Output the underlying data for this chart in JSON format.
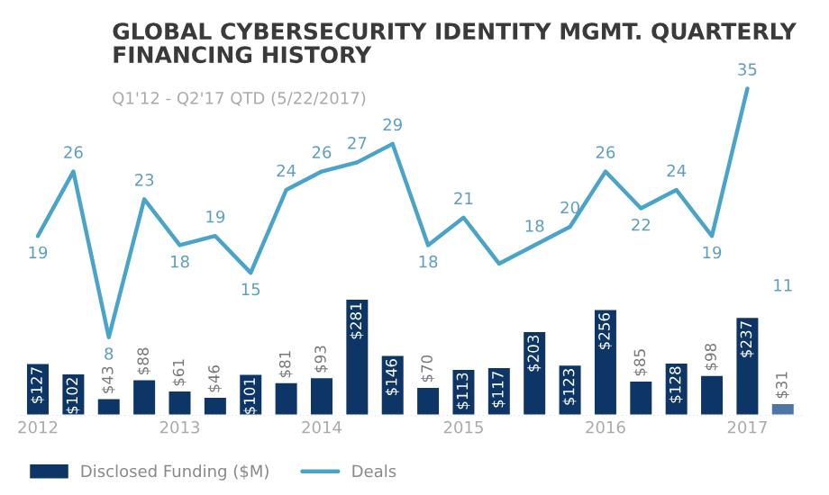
{
  "chart_data": {
    "type": "bar",
    "title": "GLOBAL CYBERSECURITY IDENTITY MGMT. QUARTERLY\nFINANCING HISTORY",
    "subtitle": "Q1'12 - Q2'17 QTD (5/22/2017)",
    "categories": [
      "2012",
      null,
      null,
      null,
      "2013",
      null,
      null,
      null,
      "2014",
      null,
      null,
      null,
      "2015",
      null,
      null,
      null,
      "2016",
      null,
      null,
      null,
      "2017",
      null
    ],
    "series": [
      {
        "name": "Disclosed Funding ($M)",
        "color": "#0d3666",
        "colors": [
          "#0d3666",
          "#0d3666",
          "#0d3666",
          "#0d3666",
          "#0d3666",
          "#0d3666",
          "#0d3666",
          "#0d3666",
          "#0d3666",
          "#0d3666",
          "#0d3666",
          "#0d3666",
          "#0d3666",
          "#0d3666",
          "#0d3666",
          "#0d3666",
          "#0d3666",
          "#0d3666",
          "#0d3666",
          "#0d3666",
          "#0d3666",
          "#4f74a8"
        ],
        "values": [
          127,
          102,
          43,
          88,
          61,
          46,
          101,
          81,
          93,
          281,
          146,
          70,
          113,
          117,
          203,
          123,
          256,
          85,
          128,
          98,
          237,
          31
        ],
        "value_labels": [
          "$127",
          "$102",
          "$43",
          "$88",
          "$61",
          "$46",
          "$101",
          "$81",
          "$93",
          "$281",
          "$146",
          "$70",
          "$113",
          "$117",
          "$203",
          "$123",
          "$256",
          "$85",
          "$128",
          "$98",
          "$237",
          "$31"
        ]
      },
      {
        "name": "Deals",
        "type": "line",
        "axis": "y2",
        "color": "#4aa3c8",
        "values": [
          19,
          26,
          8,
          23,
          18,
          19,
          15,
          24,
          26,
          27,
          29,
          18,
          21,
          16,
          18,
          20,
          26,
          22,
          24,
          19,
          35,
          null
        ],
        "value_labels": [
          "19",
          "26",
          "8",
          "23",
          "18",
          "19",
          "15",
          "24",
          "26",
          "27",
          "29",
          "18",
          "21",
          null,
          "18",
          "20",
          "26",
          "22",
          "24",
          "19",
          "35",
          null
        ]
      }
    ],
    "annotations": [
      "11"
    ],
    "tick_labels": "x",
    "grid": false,
    "legend": "bottom left"
  }
}
